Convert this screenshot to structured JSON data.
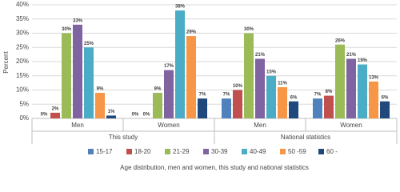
{
  "chart_data": {
    "type": "bar",
    "ylabel": "Percent",
    "xlabel": "Age distribution, men and women, this study and national statistics",
    "categories": [
      "Men",
      "Women",
      "Men",
      "Women"
    ],
    "groups": [
      "This study",
      "National statistics"
    ],
    "ylim": [
      0,
      40
    ],
    "yticks": [
      {
        "value": 0,
        "label": "0%"
      },
      {
        "value": 5,
        "label": "5%"
      },
      {
        "value": 10,
        "label": "10%"
      },
      {
        "value": 15,
        "label": "15%"
      },
      {
        "value": 20,
        "label": "20%"
      },
      {
        "value": 25,
        "label": "25%"
      },
      {
        "value": 30,
        "label": "30%"
      },
      {
        "value": 35,
        "label": "35%"
      },
      {
        "value": 40,
        "label": "40%"
      }
    ],
    "grid": true,
    "legend": "bottom",
    "series": [
      {
        "name": "15-17",
        "color": "#4f81bd",
        "values": [
          0,
          0,
          7,
          7
        ],
        "value_labels": [
          "0%",
          "0%",
          "7%",
          "7%"
        ]
      },
      {
        "name": "18-20",
        "color": "#c0504d",
        "values": [
          2,
          0,
          10,
          8
        ],
        "value_labels": [
          "2%",
          "0%",
          "10%",
          "8%"
        ]
      },
      {
        "name": "21-29",
        "color": "#9bbb59",
        "values": [
          30,
          9,
          30,
          26
        ],
        "value_labels": [
          "30%",
          "9%",
          "30%",
          "26%"
        ]
      },
      {
        "name": "30-39",
        "color": "#8064a2",
        "values": [
          33,
          17,
          21,
          21
        ],
        "value_labels": [
          "33%",
          "17%",
          "21%",
          "21%"
        ]
      },
      {
        "name": "40-49",
        "color": "#4bacc6",
        "values": [
          25,
          38,
          15,
          19
        ],
        "value_labels": [
          "25%",
          "38%",
          "15%",
          "19%"
        ]
      },
      {
        "name": "50 -59",
        "color": "#f79646",
        "values": [
          9,
          29,
          11,
          13
        ],
        "value_labels": [
          "9%",
          "29%",
          "11%",
          "13%"
        ]
      },
      {
        "name": "60 -",
        "color": "#1f497d",
        "values": [
          1,
          7,
          6,
          6
        ],
        "value_labels": [
          "1%",
          "7%",
          "6%",
          "6%"
        ]
      }
    ]
  }
}
